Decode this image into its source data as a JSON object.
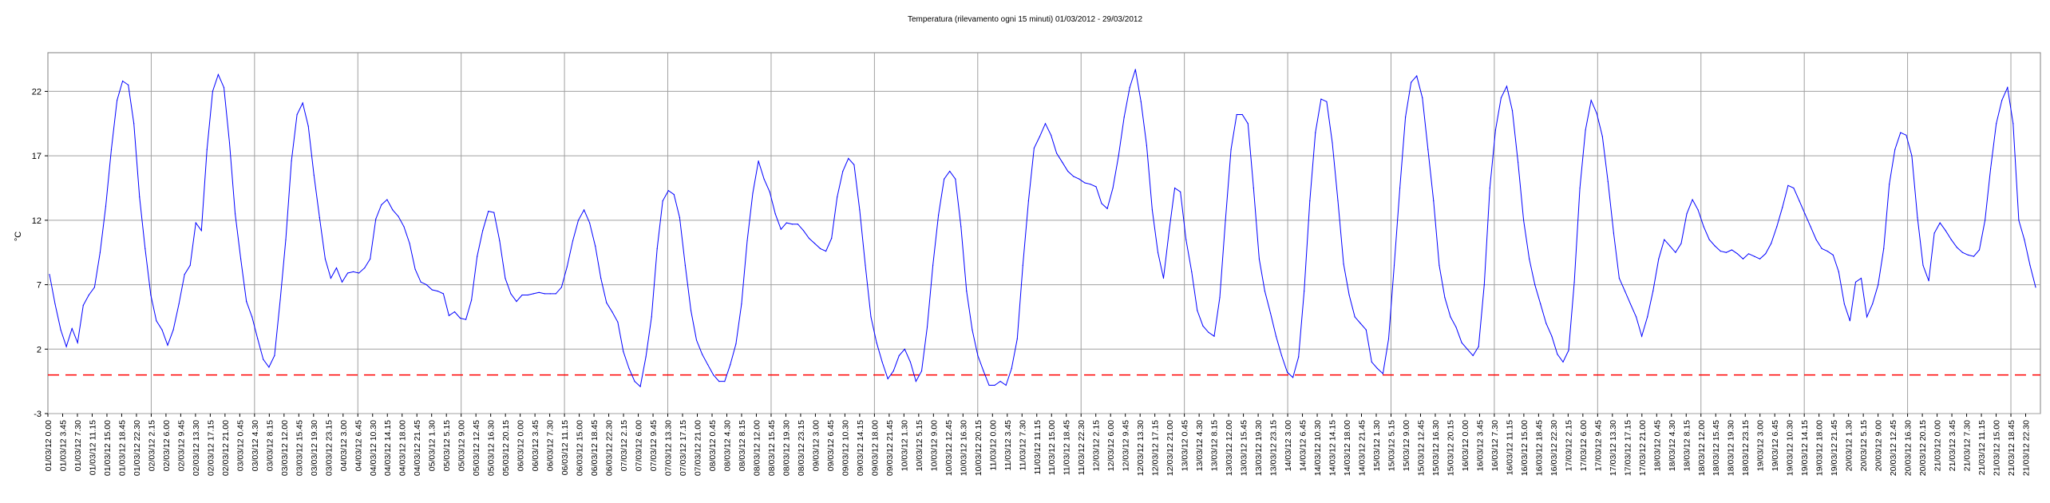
{
  "chart_data": {
    "type": "line",
    "title": "Temperatura (rilevamento ogni 15 minuti) 01/03/2012 - 29/03/2012",
    "ylabel": "°C",
    "xlabel": "",
    "ylim": [
      -3,
      25
    ],
    "yticks": [
      -3,
      2,
      7,
      12,
      17,
      22
    ],
    "grid": true,
    "legend": "none",
    "reference_line": {
      "y": 0,
      "color": "#ff0000",
      "style": "dashed"
    },
    "colors": {
      "series": "#0000ff",
      "grid": "#a0a0a0",
      "reference": "#ff0000"
    },
    "x_tick_labels": [
      "01/03/12 0.00",
      "01/03/12 3.45",
      "01/03/12 7.30",
      "01/03/12 11.15",
      "01/03/12 15.00",
      "01/03/12 18.45",
      "01/03/12 22.30",
      "02/03/12 2.15",
      "02/03/12 6.00",
      "02/03/12 9.45",
      "02/03/12 13.30",
      "02/03/12 17.15",
      "02/03/12 21.00",
      "03/03/12 0.45",
      "03/03/12 4.30",
      "03/03/12 8.15",
      "03/03/12 12.00",
      "03/03/12 15.45",
      "03/03/12 19.30",
      "03/03/12 23.15",
      "04/03/12 3.00",
      "04/03/12 6.45",
      "04/03/12 10.30",
      "04/03/12 14.15",
      "04/03/12 18.00",
      "04/03/12 21.45",
      "05/03/12 1.30",
      "05/03/12 5.15",
      "05/03/12 9.00",
      "05/03/12 12.45",
      "05/03/12 16.30",
      "05/03/12 20.15",
      "06/03/12 0.00",
      "06/03/12 3.45",
      "06/03/12 7.30",
      "06/03/12 11.15",
      "06/03/12 15.00",
      "06/03/12 18.45",
      "06/03/12 22.30",
      "07/03/12 2.15",
      "07/03/12 6.00",
      "07/03/12 9.45",
      "07/03/12 13.30",
      "07/03/12 17.15",
      "07/03/12 21.00",
      "08/03/12 0.45",
      "08/03/12 4.30",
      "08/03/12 8.15",
      "08/03/12 12.00",
      "08/03/12 15.45",
      "08/03/12 19.30",
      "08/03/12 23.15",
      "09/03/12 3.00",
      "09/03/12 6.45",
      "09/03/12 10.30",
      "09/03/12 14.15",
      "09/03/12 18.00",
      "09/03/12 21.45",
      "10/03/12 1.30",
      "10/03/12 5.15",
      "10/03/12 9.00",
      "10/03/12 12.45",
      "10/03/12 16.30",
      "10/03/12 20.15",
      "11/03/12 0.00",
      "11/03/12 3.45",
      "11/03/12 7.30",
      "11/03/12 11.15",
      "11/03/12 15.00",
      "11/03/12 18.45",
      "11/03/12 22.30",
      "12/03/12 2.15",
      "12/03/12 6.00",
      "12/03/12 9.45",
      "12/03/12 13.30",
      "12/03/12 17.15",
      "12/03/12 21.00",
      "13/03/12 0.45",
      "13/03/12 4.30",
      "13/03/12 8.15",
      "13/03/12 12.00",
      "13/03/12 15.45",
      "13/03/12 19.30",
      "13/03/12 23.15",
      "14/03/12 3.00",
      "14/03/12 6.45",
      "14/03/12 10.30",
      "14/03/12 14.15",
      "14/03/12 18.00",
      "14/03/12 21.45",
      "15/03/12 1.30",
      "15/03/12 5.15",
      "15/03/12 9.00",
      "15/03/12 12.45",
      "15/03/12 16.30",
      "15/03/12 20.15",
      "16/03/12 0.00",
      "16/03/12 3.45",
      "16/03/12 7.30",
      "16/03/12 11.15",
      "16/03/12 15.00",
      "16/03/12 18.45",
      "16/03/12 22.30",
      "17/03/12 2.15",
      "17/03/12 6.00",
      "17/03/12 9.45",
      "17/03/12 13.30",
      "17/03/12 17.15",
      "17/03/12 21.00",
      "18/03/12 0.45",
      "18/03/12 4.30",
      "18/03/12 8.15",
      "18/03/12 12.00",
      "18/03/12 15.45",
      "18/03/12 19.30",
      "18/03/12 23.15",
      "19/03/12 3.00",
      "19/03/12 6.45",
      "19/03/12 10.30",
      "19/03/12 14.15",
      "19/03/12 18.00",
      "19/03/12 21.45",
      "20/03/12 1.30",
      "20/03/12 5.15",
      "20/03/12 9.00",
      "20/03/12 12.45",
      "20/03/12 16.30",
      "20/03/12 20.15",
      "21/03/12 0.00",
      "21/03/12 3.45",
      "21/03/12 7.30",
      "21/03/12 11.15",
      "21/03/12 15.00",
      "21/03/12 18.45",
      "21/03/12 22.30"
    ],
    "series": [
      {
        "values": [
          7.8,
          5.5,
          3.5,
          2.2,
          3.6,
          2.5,
          5.4,
          6.2,
          6.8,
          9.5,
          13.1,
          17.5,
          21.3,
          22.8,
          22.5,
          19.5,
          13.8,
          9.8,
          6.2,
          4.2,
          3.5,
          2.3,
          3.5,
          5.5,
          7.8,
          8.5,
          11.8,
          11.2,
          17.5,
          22.0,
          23.3,
          22.3,
          18.0,
          12.5,
          9.0,
          5.7,
          4.5,
          2.8,
          1.2,
          0.6,
          1.5,
          5.8,
          10.5,
          16.6,
          20.2,
          21.1,
          19.3,
          15.5,
          12.2,
          9.0,
          7.5,
          8.3,
          7.2,
          7.9,
          8.0,
          7.9,
          8.3,
          9.0,
          12.1,
          13.2,
          13.6,
          12.8,
          12.3,
          11.5,
          10.2,
          8.2,
          7.2,
          7.0,
          6.6,
          6.5,
          6.3,
          4.6,
          4.9,
          4.4,
          4.3,
          5.8,
          9.2,
          11.2,
          12.7,
          12.6,
          10.4,
          7.5,
          6.3,
          5.7,
          6.2,
          6.2,
          6.3,
          6.4,
          6.3,
          6.3,
          6.3,
          6.8,
          8.4,
          10.4,
          12.0,
          12.8,
          11.8,
          10.0,
          7.5,
          5.6,
          4.9,
          4.1,
          1.8,
          0.5,
          -0.5,
          -0.9,
          1.4,
          4.5,
          9.8,
          13.5,
          14.3,
          14.0,
          12.2,
          8.5,
          5.0,
          2.7,
          1.6,
          0.8,
          0.0,
          -0.5,
          -0.5,
          0.8,
          2.4,
          5.5,
          10.4,
          14.1,
          16.6,
          15.2,
          14.2,
          12.5,
          11.3,
          11.8,
          11.7,
          11.7,
          11.2,
          10.6,
          10.2,
          9.8,
          9.6,
          10.6,
          13.8,
          15.8,
          16.8,
          16.3,
          12.8,
          8.5,
          4.5,
          2.5,
          1.0,
          -0.3,
          0.3,
          1.5,
          2.0,
          1.0,
          -0.5,
          0.3,
          3.7,
          8.5,
          12.4,
          15.2,
          15.8,
          15.2,
          11.5,
          6.5,
          3.5,
          1.5,
          0.3,
          -0.8,
          -0.8,
          -0.5,
          -0.8,
          0.5,
          2.8,
          8.5,
          13.5,
          17.6,
          18.5,
          19.5,
          18.6,
          17.2,
          16.5,
          15.8,
          15.4,
          15.2,
          14.9,
          14.8,
          14.6,
          13.3,
          12.9,
          14.5,
          17.0,
          20.0,
          22.3,
          23.7,
          21.2,
          17.8,
          12.8,
          9.5,
          7.5,
          11.2,
          14.5,
          14.2,
          10.5,
          8.0,
          5.0,
          3.8,
          3.3,
          3.0,
          6.0,
          12.0,
          17.5,
          20.2,
          20.2,
          19.5,
          14.5,
          9.0,
          6.5,
          4.8,
          3.0,
          1.5,
          0.2,
          -0.2,
          1.4,
          6.5,
          13.5,
          18.8,
          21.4,
          21.2,
          18.0,
          13.5,
          8.6,
          6.2,
          4.5,
          4.0,
          3.5,
          1.0,
          0.5,
          0.1,
          2.8,
          8.5,
          14.5,
          20.0,
          22.7,
          23.2,
          21.5,
          17.5,
          13.5,
          8.5,
          6.0,
          4.5,
          3.7,
          2.5,
          2.0,
          1.5,
          2.2,
          7.0,
          14.5,
          19.0,
          21.5,
          22.4,
          20.5,
          16.5,
          12.0,
          9.0,
          7.0,
          5.5,
          4.0,
          3.0,
          1.6,
          1.0,
          1.9,
          7.2,
          14.5,
          19.0,
          21.3,
          20.3,
          18.5,
          15.0,
          11.0,
          7.5,
          6.5,
          5.5,
          4.5,
          3.0,
          4.5,
          6.5,
          9.0,
          10.5,
          10.0,
          9.5,
          10.2,
          12.5,
          13.6,
          12.8,
          11.5,
          10.5,
          10.0,
          9.6,
          9.5,
          9.7,
          9.4,
          9.0,
          9.4,
          9.2,
          9.0,
          9.4,
          10.2,
          11.5,
          13.0,
          14.7,
          14.5,
          13.5,
          12.5,
          11.5,
          10.5,
          9.8,
          9.6,
          9.3,
          8.0,
          5.5,
          4.2,
          7.2,
          7.5,
          4.5,
          5.5,
          7.0,
          9.8,
          14.8,
          17.5,
          18.8,
          18.6,
          17.0,
          12.2,
          8.5,
          7.3,
          11.0,
          11.8,
          11.2,
          10.5,
          9.9,
          9.5,
          9.3,
          9.2,
          9.7,
          12.0,
          16.0,
          19.5,
          21.3,
          22.3,
          19.5,
          12.0,
          10.5,
          8.5,
          6.8
        ]
      }
    ]
  }
}
